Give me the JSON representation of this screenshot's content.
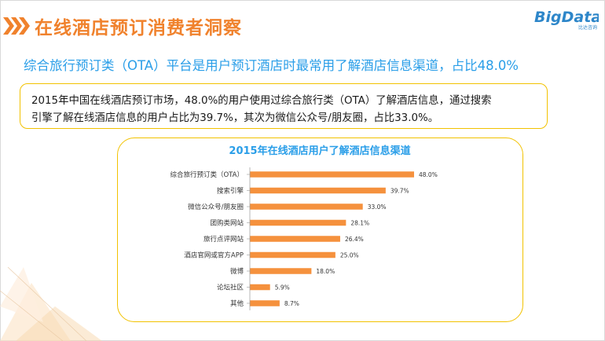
{
  "header": {
    "title": "在线酒店预订消费者洞察",
    "logo_main": "BigData",
    "logo_sub": "比达咨询"
  },
  "subtitle": "综合旅行预订类（OTA）平台是用户预订酒店时最常用了解酒店信息渠道，占比48.0%",
  "note": {
    "line1": "2015年中国在线酒店预订市场，48.0%的用户使用过综合旅行类（OTA）了解酒店信息，通过搜索",
    "line2": "引擎了解在线酒店信息的用户占比为39.7%，其次为微信公众号/朋友圈，占比33.0%。"
  },
  "colors": {
    "accent": "#f0822d",
    "bar": "#f5913d",
    "subtitle": "#2a9ee8",
    "border": "#f2c200",
    "logo": "#2d86c9"
  },
  "chart_data": {
    "type": "bar",
    "orientation": "horizontal",
    "title": "2015年在线酒店用户了解酒店信息渠道",
    "categories": [
      "综合旅行预订类（OTA）",
      "搜索引擎",
      "微信公众号/朋友圈",
      "团购类网站",
      "旅行点评网站",
      "酒店官网或官方APP",
      "微博",
      "论坛社区",
      "其他"
    ],
    "values": [
      48.0,
      39.7,
      33.0,
      28.1,
      26.4,
      25.0,
      18.0,
      5.9,
      8.7
    ],
    "value_labels": [
      "48.0%",
      "39.7%",
      "33.0%",
      "28.1%",
      "26.4%",
      "25.0%",
      "18.0%",
      "5.9%",
      "8.7%"
    ],
    "xlim": [
      0,
      48.0
    ],
    "grid": false,
    "legend": "none"
  }
}
